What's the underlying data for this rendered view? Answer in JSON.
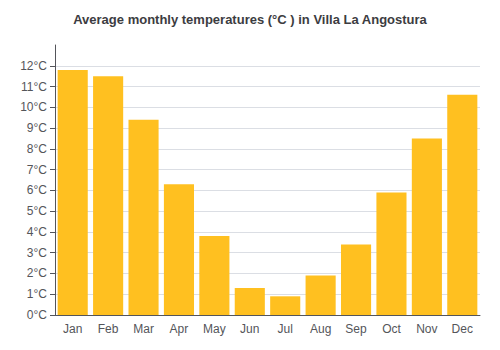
{
  "chart_data": {
    "type": "bar",
    "title": "Average monthly temperatures (°C ) in Villa La Angostura",
    "categories": [
      "Jan",
      "Feb",
      "Mar",
      "Apr",
      "May",
      "Jun",
      "Jul",
      "Aug",
      "Sep",
      "Oct",
      "Nov",
      "Dec"
    ],
    "values": [
      11.8,
      11.5,
      9.4,
      6.3,
      3.8,
      1.3,
      0.9,
      1.9,
      3.4,
      5.9,
      8.5,
      10.6
    ],
    "color": "#FFC020",
    "ylim": [
      0,
      13
    ],
    "yticks": [
      {
        "value": 0,
        "label": "0°C"
      },
      {
        "value": 1,
        "label": "1°C"
      },
      {
        "value": 2,
        "label": "2°C"
      },
      {
        "value": 3,
        "label": "3°C"
      },
      {
        "value": 4,
        "label": "4°C"
      },
      {
        "value": 5,
        "label": "5°C"
      },
      {
        "value": 6,
        "label": "6°C"
      },
      {
        "value": 7,
        "label": "7°C"
      },
      {
        "value": 8,
        "label": "8°C"
      },
      {
        "value": 9,
        "label": "9°C"
      },
      {
        "value": 10,
        "label": "10°C"
      },
      {
        "value": 11,
        "label": "11°C"
      },
      {
        "value": 12,
        "label": "12°C"
      }
    ],
    "grid": true
  }
}
